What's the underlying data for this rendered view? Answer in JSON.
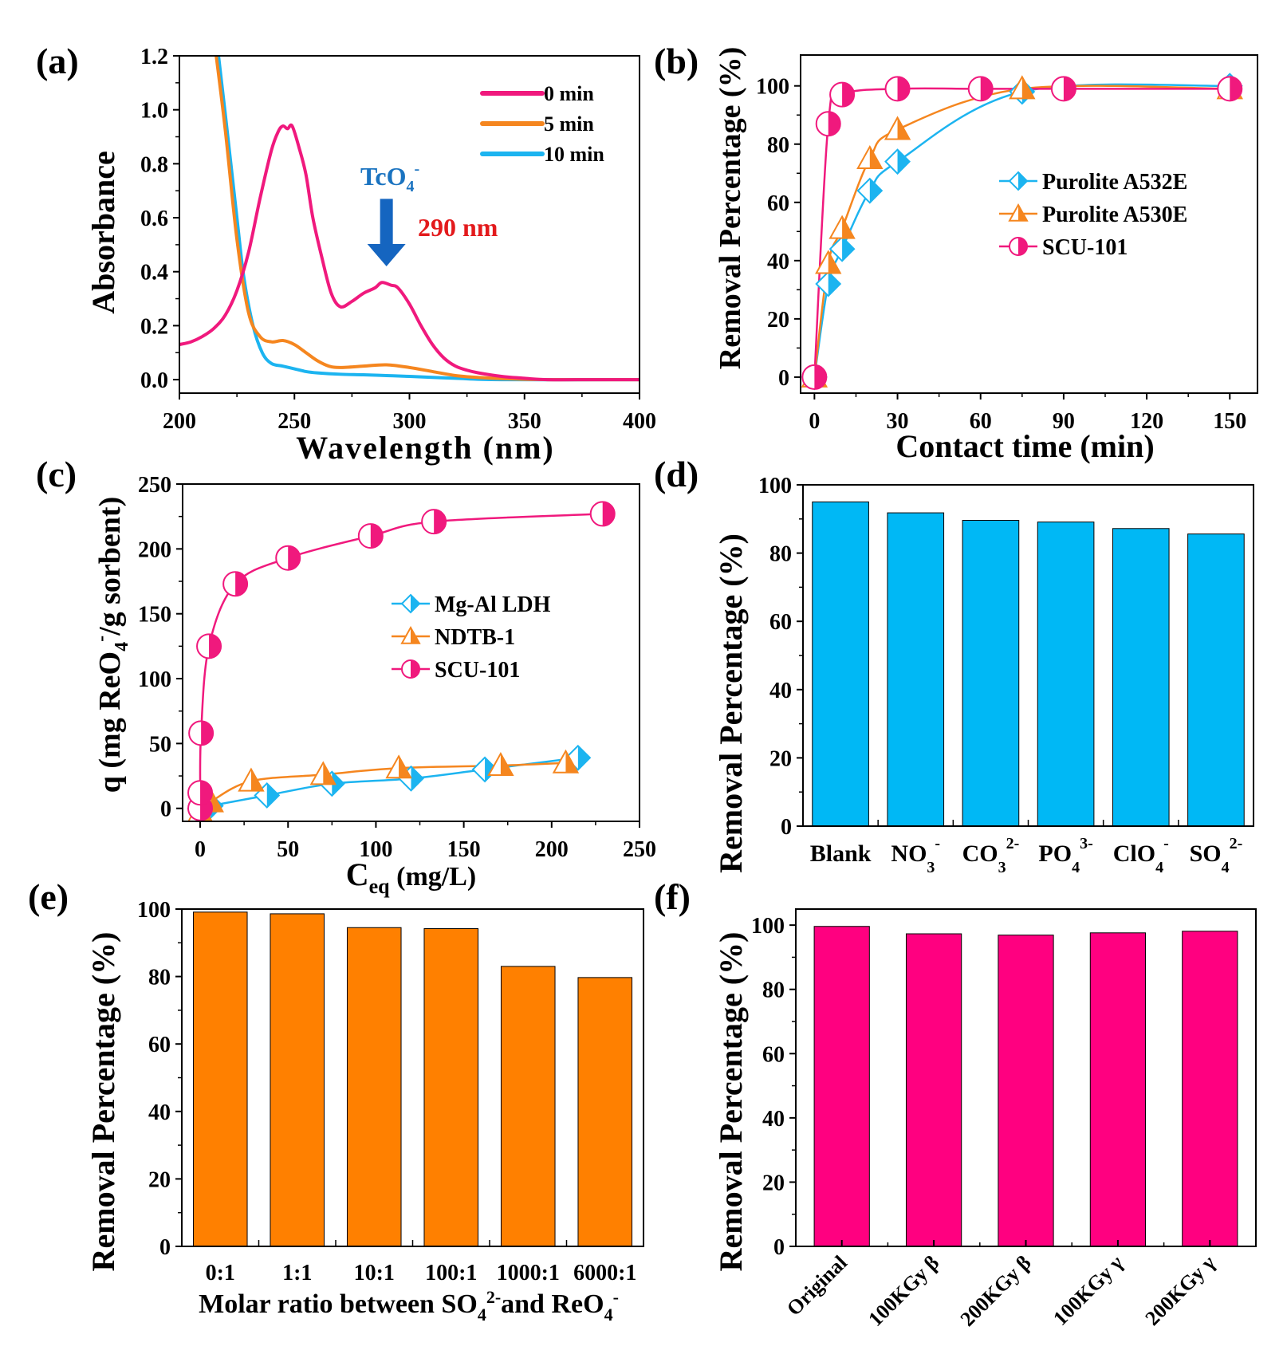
{
  "chart_data": [
    {
      "panel": "(a)",
      "type": "line",
      "title": "",
      "xlabel": "Wavelength (nm)",
      "ylabel": "Absorbance",
      "xlim": [
        200,
        400
      ],
      "ylim": [
        -0.05,
        1.2
      ],
      "xticks": [
        200,
        250,
        300,
        350,
        400
      ],
      "yticks": [
        0.0,
        0.2,
        0.4,
        0.6,
        0.8,
        1.0,
        1.2
      ],
      "ytick_labels": [
        "0.0",
        "0.2",
        "0.4",
        "0.6",
        "0.8",
        "1.0",
        "1.2"
      ],
      "legend_position": "top-right",
      "annotations": [
        {
          "text": "TcO4-",
          "base": "TcO",
          "sub": "4",
          "sup": "-",
          "color": "#1a73c0",
          "x": 290,
          "y": 0.76
        },
        {
          "text": "290 nm",
          "color": "#e31a1c",
          "x": 300,
          "y": 0.57
        },
        {
          "type": "arrow-down",
          "color": "#1565c0",
          "x": 290,
          "y_from": 0.67,
          "y_to": 0.42
        }
      ],
      "series": [
        {
          "name": "0 min",
          "color": "#f0197d",
          "x": [
            200,
            205,
            210,
            215,
            220,
            225,
            230,
            235,
            240,
            243,
            245,
            247,
            249,
            252,
            255,
            258,
            262,
            266,
            270,
            275,
            280,
            285,
            288,
            292,
            295,
            300,
            305,
            310,
            315,
            320,
            325,
            330,
            340,
            350,
            360,
            380,
            400
          ],
          "y": [
            0.13,
            0.14,
            0.16,
            0.19,
            0.24,
            0.33,
            0.47,
            0.67,
            0.85,
            0.92,
            0.94,
            0.93,
            0.94,
            0.86,
            0.76,
            0.6,
            0.45,
            0.32,
            0.27,
            0.29,
            0.32,
            0.34,
            0.36,
            0.35,
            0.34,
            0.28,
            0.2,
            0.13,
            0.08,
            0.05,
            0.035,
            0.025,
            0.012,
            0.005,
            0.0,
            0.0,
            0.0
          ]
        },
        {
          "name": "5 min",
          "color": "#f5861f",
          "x": [
            216,
            220,
            225,
            230,
            235,
            240,
            245,
            250,
            255,
            260,
            265,
            270,
            280,
            290,
            300,
            310,
            320,
            330,
            340,
            360,
            400
          ],
          "y": [
            1.2,
            0.92,
            0.52,
            0.25,
            0.16,
            0.14,
            0.145,
            0.13,
            0.1,
            0.07,
            0.05,
            0.045,
            0.05,
            0.055,
            0.045,
            0.03,
            0.015,
            0.008,
            0.004,
            0.0,
            0.0
          ]
        },
        {
          "name": "10 min",
          "color": "#1cb4f0",
          "x": [
            217,
            220,
            225,
            228,
            232,
            236,
            240,
            245,
            250,
            255,
            260,
            270,
            280,
            290,
            300,
            320,
            340,
            400
          ],
          "y": [
            1.2,
            0.98,
            0.6,
            0.38,
            0.2,
            0.1,
            0.06,
            0.05,
            0.04,
            0.03,
            0.025,
            0.02,
            0.018,
            0.015,
            0.012,
            0.005,
            0.0,
            0.0
          ]
        }
      ]
    },
    {
      "panel": "(b)",
      "type": "line",
      "title": "",
      "xlabel": "Contact time (min)",
      "ylabel": "Removal Percentage (%)",
      "xlim": [
        -5,
        160
      ],
      "ylim": [
        -5.5,
        110.6
      ],
      "xticks": [
        0,
        30,
        60,
        90,
        120,
        150
      ],
      "yticks": [
        0,
        20,
        40,
        60,
        80,
        100
      ],
      "legend_position": "center-right",
      "series": [
        {
          "name": "Purolite A532E",
          "color": "#1cb4f0",
          "marker": "half-diamond",
          "x": [
            0,
            5,
            10,
            20,
            30,
            75,
            150
          ],
          "y": [
            0,
            32,
            44,
            64,
            74,
            98,
            100
          ]
        },
        {
          "name": "Purolite A530E",
          "color": "#f5861f",
          "marker": "half-triangle",
          "x": [
            0,
            5,
            10,
            20,
            30,
            75,
            150
          ],
          "y": [
            0,
            39,
            51,
            75,
            85,
            99,
            99
          ]
        },
        {
          "name": "SCU-101",
          "color": "#f0197d",
          "marker": "half-circle",
          "x": [
            0,
            5,
            10,
            30,
            60,
            90,
            150
          ],
          "y": [
            0,
            87,
            97,
            99,
            99,
            99,
            99
          ]
        }
      ]
    },
    {
      "panel": "(c)",
      "type": "scatter",
      "title": "",
      "xlabel": "Ceq (mg/L)",
      "xlabel_base": "C",
      "xlabel_sub": "eq",
      "xlabel_rest": " (mg/L)",
      "ylabel": "q (mg ReO4-/g sorbent)",
      "ylabel_parts": {
        "pre": "q (mg ReO",
        "sub": "4",
        "sup": "-",
        "post": "/g sorbent)"
      },
      "xlim": [
        -10,
        250
      ],
      "ylim": [
        -10,
        250
      ],
      "xticks": [
        0,
        50,
        100,
        150,
        200,
        250
      ],
      "yticks": [
        0,
        50,
        100,
        150,
        200,
        250
      ],
      "legend_position": "center-right",
      "series": [
        {
          "name": "Mg-Al LDH",
          "color": "#1cb4f0",
          "marker": "half-diamond",
          "x": [
            0,
            6,
            38,
            75,
            120,
            162,
            215
          ],
          "y": [
            0,
            2,
            10,
            19,
            23,
            30,
            39
          ]
        },
        {
          "name": "NDTB-1",
          "color": "#f5861f",
          "marker": "half-triangle",
          "x": [
            0,
            6,
            29,
            70,
            113,
            171,
            208
          ],
          "y": [
            -3,
            5,
            21,
            26,
            31,
            33,
            35
          ]
        },
        {
          "name": "SCU-101",
          "color": "#f0197d",
          "marker": "half-circle",
          "x": [
            0,
            0,
            0.5,
            5,
            20,
            50,
            97,
            133,
            229
          ],
          "y": [
            0,
            12,
            58,
            125,
            173,
            193,
            210,
            221,
            227
          ]
        }
      ]
    },
    {
      "panel": "(d)",
      "type": "bar",
      "title": "",
      "xlabel": "",
      "ylabel": "Removal Percentage (%)",
      "ylim": [
        0,
        100
      ],
      "yticks": [
        0,
        20,
        40,
        60,
        80,
        100
      ],
      "color": "#00b8f5",
      "categories": [
        {
          "base": "Blank",
          "sub": "",
          "sup": ""
        },
        {
          "base": "NO",
          "sub": "3",
          "sup": "-"
        },
        {
          "base": "CO",
          "sub": "3",
          "sup": "2-"
        },
        {
          "base": "PO",
          "sub": "4",
          "sup": "3-"
        },
        {
          "base": "ClO",
          "sub": "4",
          "sup": "-"
        },
        {
          "base": "SO",
          "sub": "4",
          "sup": "2-"
        }
      ],
      "values": [
        95.0,
        91.8,
        89.6,
        89.1,
        87.2,
        85.6
      ]
    },
    {
      "panel": "(e)",
      "type": "bar",
      "title": "",
      "xlabel": "Molar ratio between SO4 2- and ReO4 -",
      "xlabel_parts": {
        "a": "Molar ratio between SO",
        "a_sub": "4",
        "a_sup": "2-",
        "b": "and ReO",
        "b_sub": "4",
        "b_sup": "-"
      },
      "ylabel": "Removal Percentage (%)",
      "ylim": [
        0,
        100
      ],
      "yticks": [
        0,
        20,
        40,
        60,
        80,
        100
      ],
      "color": "#ff8000",
      "categories": [
        "0:1",
        "1:1",
        "10:1",
        "100:1",
        "1000:1",
        "6000:1"
      ],
      "values": [
        99.1,
        98.6,
        94.5,
        94.2,
        83.0,
        79.7
      ]
    },
    {
      "panel": "(f)",
      "type": "bar",
      "title": "",
      "xlabel": "",
      "ylabel": "Removal Percentage (%)",
      "ylim": [
        0,
        105
      ],
      "yticks": [
        0,
        20,
        40,
        60,
        80,
        100
      ],
      "color": "#ff0080",
      "categories": [
        "Original",
        "100KGy β",
        "200KGy β",
        "100KGy γ",
        "200KGy γ"
      ],
      "values": [
        99.6,
        97.3,
        96.9,
        97.6,
        98.1
      ]
    }
  ]
}
